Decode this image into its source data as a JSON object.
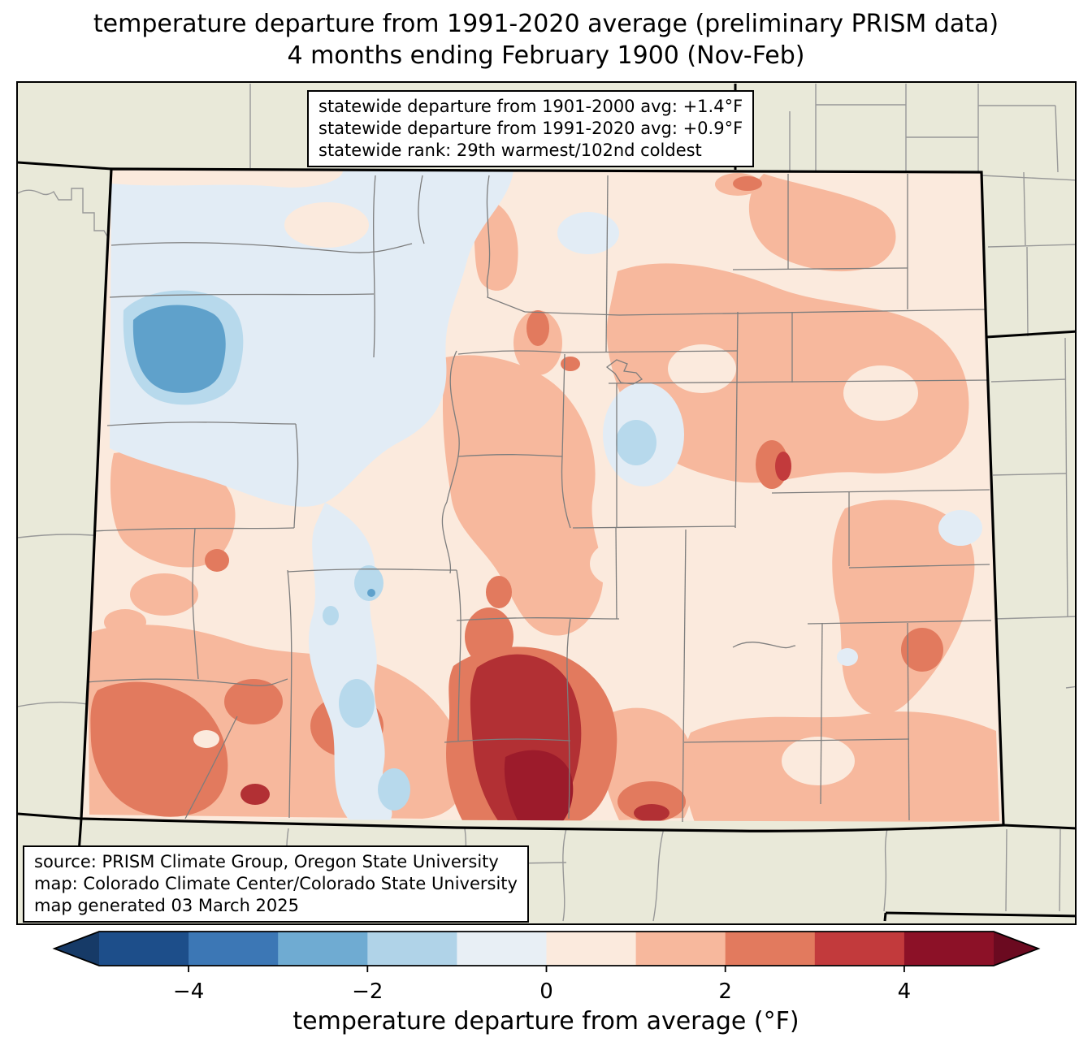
{
  "title": {
    "line1": "temperature departure from 1991-2020 average (preliminary PRISM data)",
    "line2": "4 months ending February 1900 (Nov-Feb)"
  },
  "stats_box": {
    "line1": "statewide departure from 1901-2000 avg: +1.4°F",
    "line2": "statewide departure from 1991-2020 avg: +0.9°F",
    "line3": "statewide rank: 29th warmest/102nd coldest"
  },
  "source_box": {
    "line1": "source: PRISM Climate Group, Oregon State University",
    "line2": "map: Colorado Climate Center/Colorado State University",
    "line3": "map generated 03 March 2025"
  },
  "colorbar": {
    "label": "temperature departure from average (°F)",
    "range_min": -5,
    "range_max": 5,
    "ticks": [
      {
        "value": -4,
        "label": "−4"
      },
      {
        "value": -2,
        "label": "−2"
      },
      {
        "value": 0,
        "label": "0"
      },
      {
        "value": 2,
        "label": "2"
      },
      {
        "value": 4,
        "label": "4"
      }
    ],
    "bin_edges": [
      -5,
      -4,
      -3,
      -2,
      -1,
      0,
      1,
      2,
      3,
      4,
      5
    ],
    "segment_colors": [
      "#1d4e8a",
      "#3c77b5",
      "#6fabd2",
      "#b0d3e8",
      "#e8eff5",
      "#fbeadd",
      "#f7b89d",
      "#e27a5e",
      "#c23a3c",
      "#8c1127"
    ],
    "under_color": "#163a67",
    "over_color": "#6b0a20"
  },
  "map_colors": {
    "outside_background": "#e9e9d9",
    "state_border": "#000000",
    "county_line": "#7d7d7d",
    "outside_county_line": "#989898",
    "no_data_strip": "#ecead9"
  }
}
